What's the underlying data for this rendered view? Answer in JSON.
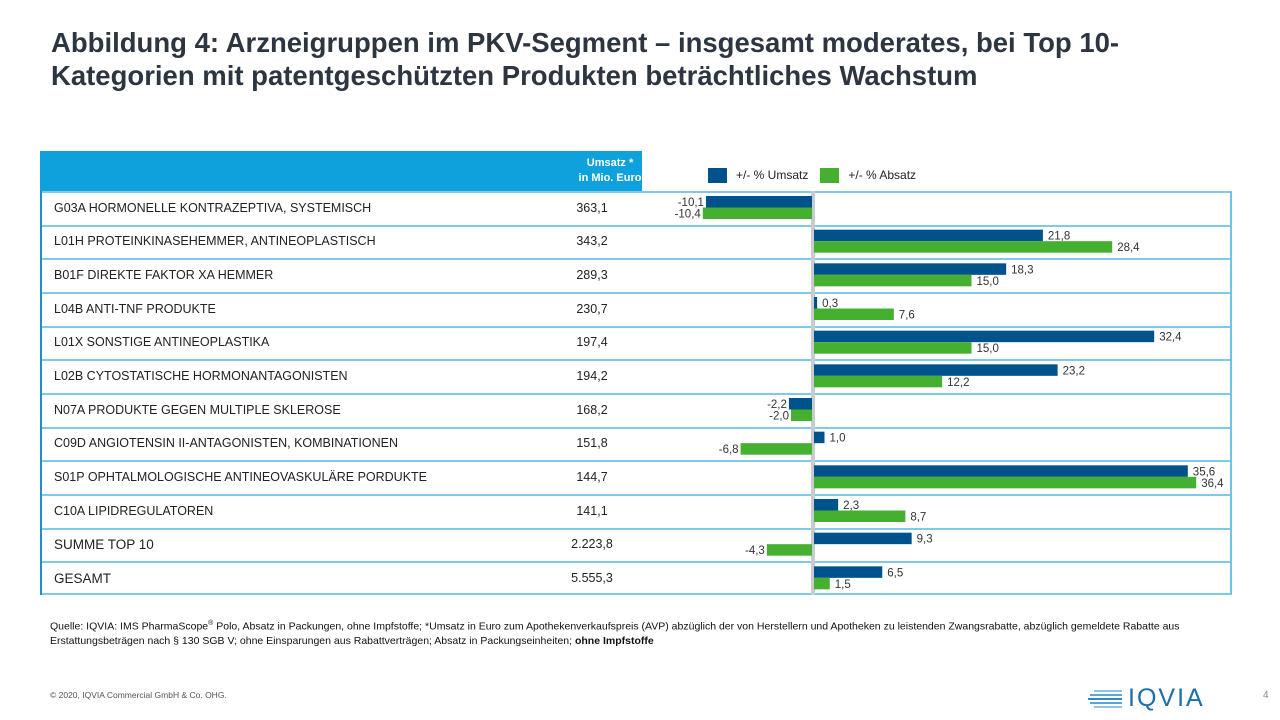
{
  "title": "Abbildung 4: Arzneigruppen im PKV-Segment – insgesamt moderates, bei Top 10- Kategorien mit patentgeschützten Produkten beträchtliches Wachstum",
  "table_header": {
    "value_col_line1": "Umsatz *",
    "value_col_line2": "in Mio. Euro"
  },
  "legend": {
    "umsatz": "+/- % Umsatz",
    "absatz": "+/- % Absatz"
  },
  "colors": {
    "umsatz": "#00528a",
    "absatz": "#45b02f",
    "header": "#0fa1dc"
  },
  "rows": [
    {
      "label": "G03A  HORMONELLE  KONTRAZEPTIVA,  SYSTEMISCH",
      "value": "363,1",
      "umsatz_label": "-10,1",
      "absatz_label": "-10,4"
    },
    {
      "label": "L01H  PROTEINKINASEHEMMER,  ANTINEOPLASTISCH",
      "value": "343,2",
      "umsatz_label": "21,8",
      "absatz_label": "28,4"
    },
    {
      "label": "B01F  DIREKTE  FAKTOR  XA HEMMER",
      "value": "289,3",
      "umsatz_label": "18,3",
      "absatz_label": "15,0"
    },
    {
      "label": "L04B  ANTI-TNF  PRODUKTE",
      "value": "230,7",
      "umsatz_label": "0,3",
      "absatz_label": "7,6"
    },
    {
      "label": "L01X  SONSTIGE  ANTINEOPLASTIKA",
      "value": "197,4",
      "umsatz_label": "32,4",
      "absatz_label": "15,0"
    },
    {
      "label": "L02B  CYTOSTATISCHE  HORMONANTAGONISTEN",
      "value": "194,2",
      "umsatz_label": "23,2",
      "absatz_label": "12,2"
    },
    {
      "label": "N07A  PRODUKTE  GEGEN  MULTIPLE  SKLEROSE",
      "value": "168,2",
      "umsatz_label": "-2,2",
      "absatz_label": "-2,0"
    },
    {
      "label": "C09D  ANGIOTENSIN  II-ANTAGONISTEN,  KOMBINATIONEN",
      "value": "151,8",
      "umsatz_label": "1,0",
      "absatz_label": "-6,8"
    },
    {
      "label": "S01P OPHTALMOLOGISCHE  ANTINEOVASKULÄRE  PORDUKTE",
      "value": "144,7",
      "umsatz_label": "35,6",
      "absatz_label": "36,4"
    },
    {
      "label": "C10A LIPIDREGULATOREN",
      "value": "141,1",
      "umsatz_label": "2,3",
      "absatz_label": "8,7"
    },
    {
      "label": "SUMME  TOP 10",
      "value": "2.223,8",
      "umsatz_label": "9,3",
      "absatz_label": "-4,3"
    },
    {
      "label": "GESAMT",
      "value": "5.555,3",
      "umsatz_label": "6,5",
      "absatz_label": "1,5"
    }
  ],
  "chart_data": {
    "type": "bar",
    "orientation": "horizontal",
    "title": "Abbildung 4: Arzneigruppen im PKV-Segment – insgesamt moderates, bei Top 10- Kategorien mit patentgeschützten Produkten beträchtliches Wachstum",
    "categories": [
      "G03A HORMONELLE KONTRAZEPTIVA, SYSTEMISCH",
      "L01H PROTEINKINASEHEMMER, ANTINEOPLASTISCH",
      "B01F DIREKTE FAKTOR XA HEMMER",
      "L04B ANTI-TNF PRODUKTE",
      "L01X SONSTIGE ANTINEOPLASTIKA",
      "L02B CYTOSTATISCHE HORMONANTAGONISTEN",
      "N07A PRODUKTE GEGEN MULTIPLE SKLEROSE",
      "C09D ANGIOTENSIN II-ANTAGONISTEN, KOMBINATIONEN",
      "S01P OPHTALMOLOGISCHE ANTINEOVASKULÄRE PORDUKTE",
      "C10A LIPIDREGULATOREN",
      "SUMME TOP 10",
      "GESAMT"
    ],
    "umsatz_mio_euro": [
      363.1,
      343.2,
      289.3,
      230.7,
      197.4,
      194.2,
      168.2,
      151.8,
      144.7,
      141.1,
      2223.8,
      5555.3
    ],
    "series": [
      {
        "name": "+/- % Umsatz",
        "values": [
          -10.1,
          21.8,
          18.3,
          0.3,
          32.4,
          23.2,
          -2.2,
          1.0,
          35.6,
          2.3,
          9.3,
          6.5
        ]
      },
      {
        "name": "+/- % Absatz",
        "values": [
          -10.4,
          28.4,
          15.0,
          7.6,
          15.0,
          12.2,
          -2.0,
          -6.8,
          36.4,
          8.7,
          -4.3,
          1.5
        ]
      }
    ],
    "xlabel": "",
    "ylabel": "",
    "xlim": [
      -16,
      40
    ],
    "grid": false,
    "legend_position": "top"
  },
  "footnote": {
    "part1": "Quelle: IQVIA:  IMS  PharmaScope",
    "reg": "®",
    "part2": " Polo, Absatz in Packungen, ohne Impfstoffe; *Umsatz in Euro zum Apothekenverkaufspreis (AVP) abzüglich der von Herstellern und Apotheken zu leistenden Zwangsrabatte, abzüglich gemeldete Rabatte aus Erstattungsbeträgen nach  § 130 SGB V;  ohne Einsparungen aus Rabattverträgen; Absatz in Packungseinheiten; ",
    "bold": "ohne Impfstoffe"
  },
  "copyright": "© 2020, IQVIA Commercial GmbH & Co. OHG.",
  "logo_text": "IQVIA",
  "page_number": "4"
}
